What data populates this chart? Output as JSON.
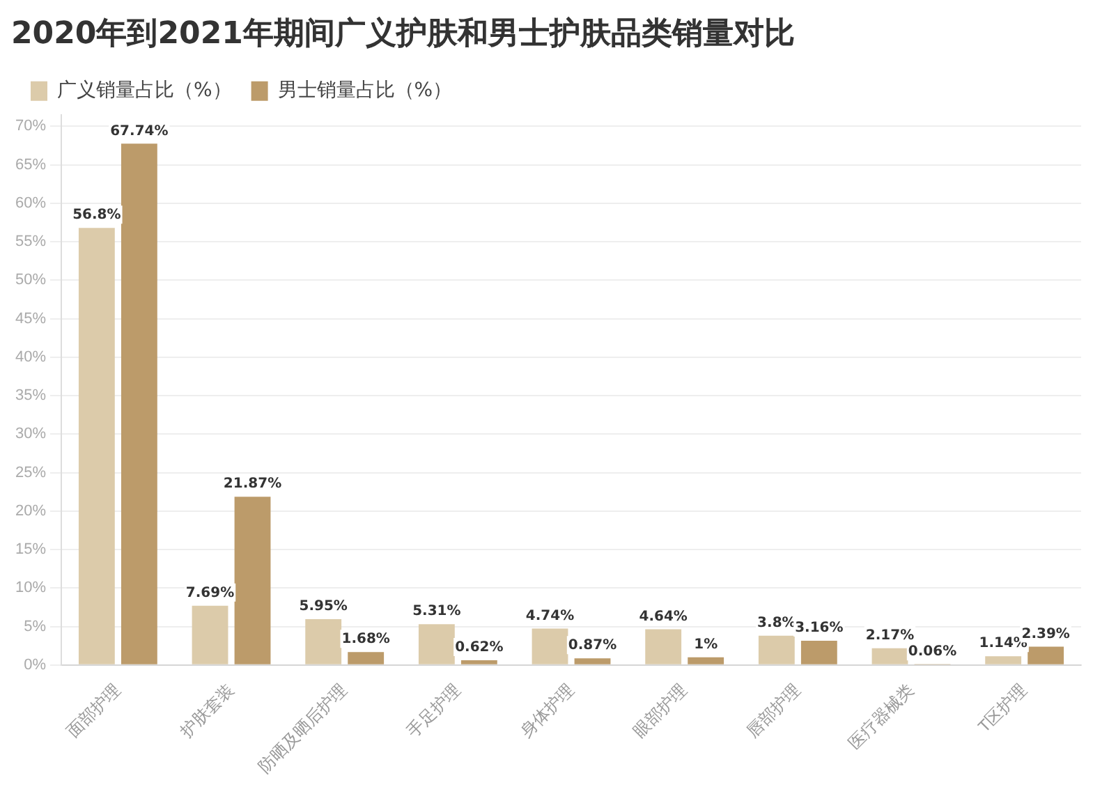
{
  "chart_data": {
    "type": "bar",
    "title": "2020年到2021年期间广义护肤和男士护肤品类销量对比",
    "categories": [
      "面部护理",
      "护肤套装",
      "防晒及晒后护理",
      "手足护理",
      "身体护理",
      "眼部护理",
      "唇部护理",
      "医疗器械类",
      "T区护理"
    ],
    "series": [
      {
        "name": "广义销量占比（%）",
        "color": "#dccbaa",
        "values": [
          56.8,
          7.69,
          5.95,
          5.31,
          4.74,
          4.64,
          3.8,
          2.17,
          1.14
        ],
        "value_labels": [
          "56.8%",
          "7.69%",
          "5.95%",
          "5.31%",
          "4.74%",
          "4.64%",
          "3.8%",
          "2.17%",
          "1.14%"
        ]
      },
      {
        "name": "男士销量占比（%）",
        "color": "#bc9b6a",
        "values": [
          67.74,
          21.87,
          1.68,
          0.62,
          0.87,
          1,
          3.16,
          0.06,
          2.39
        ],
        "value_labels": [
          "67.74%",
          "21.87%",
          "1.68%",
          "0.62%",
          "0.87%",
          "1%",
          "3.16%",
          "0.06%",
          "2.39%"
        ]
      }
    ],
    "ylim": [
      0,
      71.5
    ],
    "yticks": [
      {
        "value": 0,
        "label": "0%"
      },
      {
        "value": 5,
        "label": "5%"
      },
      {
        "value": 10,
        "label": "10%"
      },
      {
        "value": 15,
        "label": "15%"
      },
      {
        "value": 20,
        "label": "20%"
      },
      {
        "value": 25,
        "label": "25%"
      },
      {
        "value": 30,
        "label": "30%"
      },
      {
        "value": 35,
        "label": "35%"
      },
      {
        "value": 40,
        "label": "40%"
      },
      {
        "value": 45,
        "label": "45%"
      },
      {
        "value": 50,
        "label": "50%"
      },
      {
        "value": 55,
        "label": "55%"
      },
      {
        "value": 60,
        "label": "60%"
      },
      {
        "value": 65,
        "label": "65%"
      },
      {
        "value": 70,
        "label": "70%"
      }
    ],
    "grid": "y",
    "legend": "top left"
  }
}
